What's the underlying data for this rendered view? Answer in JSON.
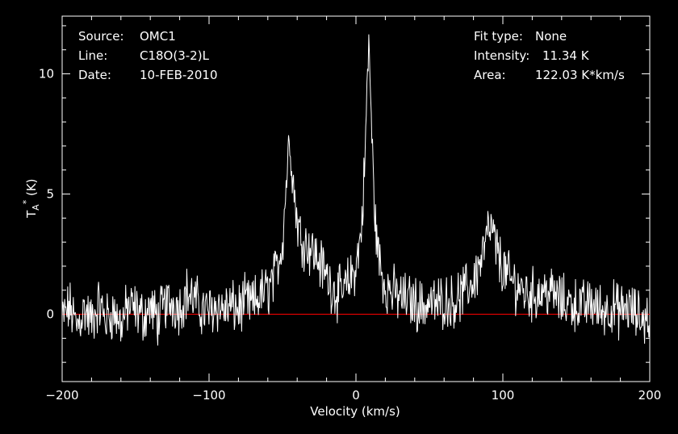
{
  "chart_data": {
    "type": "line",
    "xlabel": "Velocity (km/s)",
    "ylabel": {
      "main": "T",
      "sub": "A",
      "sup": "*",
      "unit": " (K)"
    },
    "xlim": [
      -200,
      200
    ],
    "ylim": [
      -2.8,
      12.4
    ],
    "xticks": [
      -200,
      -100,
      0,
      100,
      200
    ],
    "yticks": [
      0,
      5,
      10
    ],
    "grid": false,
    "colors": {
      "background": "#000000",
      "spectrum": "#ffffff",
      "baseline": "#ff0000",
      "axes": "#ffffff"
    },
    "baseline_y": 0,
    "annotations_left": [
      {
        "key": "Source:",
        "value": "OMC1"
      },
      {
        "key": "Line:",
        "value": "C18O(3-2)L"
      },
      {
        "key": "Date:",
        "value": "10-FEB-2010"
      }
    ],
    "annotations_right": [
      {
        "key": "Fit type:",
        "value": "None"
      },
      {
        "key": "Intensity:",
        "value": "11.34 K"
      },
      {
        "key": "Area:",
        "value": "122.03 K*km/s"
      }
    ],
    "series": [
      {
        "x": [
          -200,
          -195,
          -190,
          -185,
          -180,
          -175,
          -170,
          -165,
          -160,
          -155,
          -150,
          -145,
          -140,
          -135,
          -130,
          -125,
          -120,
          -115,
          -110,
          -105,
          -100,
          -95,
          -90,
          -85,
          -80,
          -75,
          -70,
          -65,
          -60,
          -55,
          -50,
          -48,
          -46,
          -45,
          -44,
          -42,
          -40,
          -38,
          -35,
          -30,
          -25,
          -20,
          -15,
          -10,
          -5,
          0,
          2,
          4,
          6,
          8,
          9,
          10,
          12,
          14,
          16,
          18,
          20,
          25,
          30,
          35,
          40,
          45,
          50,
          55,
          60,
          65,
          70,
          75,
          80,
          85,
          88,
          90,
          92,
          94,
          96,
          100,
          105,
          110,
          115,
          120,
          125,
          130,
          135,
          140,
          145,
          150,
          155,
          160,
          165,
          170,
          175,
          180,
          185,
          190,
          195,
          200
        ],
        "y": [
          -0.2,
          0.3,
          -0.5,
          0.2,
          -0.3,
          0.4,
          -0.2,
          0.1,
          -0.4,
          0.3,
          0.2,
          -0.1,
          0.3,
          -0.2,
          0.4,
          0.5,
          0.3,
          0.9,
          0.6,
          0.2,
          0.1,
          0.4,
          0.2,
          0.3,
          0.2,
          0.5,
          0.4,
          0.8,
          1.0,
          1.6,
          3.0,
          5.0,
          6.8,
          7.3,
          6.6,
          5.0,
          3.9,
          3.3,
          3.0,
          2.7,
          2.2,
          1.6,
          1.0,
          0.8,
          1.3,
          2.0,
          2.7,
          3.8,
          6.2,
          10.2,
          11.3,
          9.0,
          5.2,
          3.2,
          2.2,
          1.6,
          1.2,
          0.9,
          0.7,
          0.6,
          0.5,
          0.3,
          0.5,
          0.4,
          0.6,
          0.5,
          0.7,
          1.0,
          1.4,
          2.2,
          2.9,
          3.4,
          3.6,
          3.1,
          2.6,
          1.9,
          1.4,
          1.2,
          0.9,
          0.8,
          0.9,
          1.0,
          0.8,
          0.5,
          0.5,
          0.4,
          0.3,
          0.5,
          0.2,
          0.2,
          0.3,
          0.1,
          0.3,
          0.0,
          -0.2,
          -0.1
        ]
      }
    ]
  }
}
